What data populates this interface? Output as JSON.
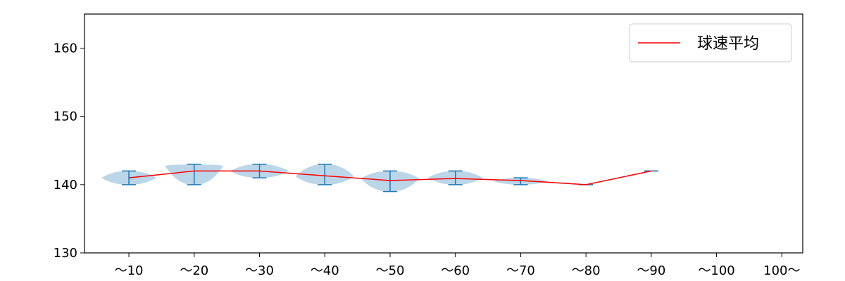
{
  "chart_data": {
    "type": "violin",
    "categories": [
      "～10",
      "～20",
      "～30",
      "～40",
      "～50",
      "～60",
      "～70",
      "～80",
      "～90",
      "～100",
      "100～"
    ],
    "series": [
      {
        "name": "球速平均",
        "type": "line",
        "color": "#ff0000",
        "values": [
          141,
          142,
          142,
          141.3,
          140.6,
          140.9,
          140.6,
          140,
          142,
          null,
          null
        ]
      }
    ],
    "distributions": [
      {
        "category": "～10",
        "min": 140,
        "max": 142,
        "center": 141,
        "halfwidth": 0.42
      },
      {
        "category": "～20",
        "min": 140,
        "max": 143,
        "center": 142.8,
        "halfwidth": 0.45
      },
      {
        "category": "～30",
        "min": 141,
        "max": 143,
        "center": 142,
        "halfwidth": 0.45
      },
      {
        "category": "～40",
        "min": 140,
        "max": 143,
        "center": 141.2,
        "halfwidth": 0.45
      },
      {
        "category": "～50",
        "min": 139,
        "max": 142,
        "center": 140.9,
        "halfwidth": 0.45
      },
      {
        "category": "～60",
        "min": 140,
        "max": 142,
        "center": 141,
        "halfwidth": 0.42
      },
      {
        "category": "～70",
        "min": 140,
        "max": 141,
        "center": 140.5,
        "halfwidth": 0.42
      },
      {
        "category": "～80",
        "min": 140,
        "max": 140,
        "center": 140,
        "halfwidth": 0.1
      },
      {
        "category": "～90",
        "min": 142,
        "max": 142,
        "center": 142,
        "halfwidth": 0.1
      }
    ],
    "yticks": [
      130,
      140,
      150,
      160
    ],
    "ylim": [
      130,
      165
    ],
    "title": "",
    "xlabel": "",
    "ylabel": "",
    "legend": {
      "position": "top-right",
      "entries": [
        "球速平均"
      ]
    },
    "grid": false,
    "colors": {
      "violin_fill": "#1f77b4",
      "violin_line": "#1f77b4",
      "mean_line": "#ff0000"
    }
  }
}
